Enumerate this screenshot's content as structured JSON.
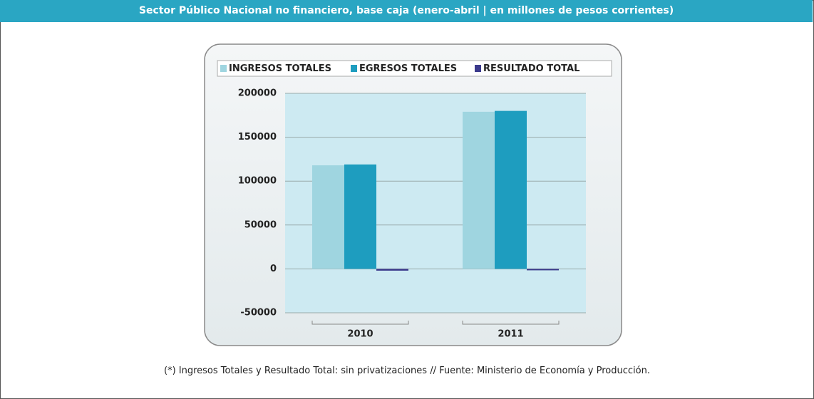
{
  "header": {
    "title": "Sector Público Nacional no financiero, base caja (enero-abril | en millones de pesos corrientes)"
  },
  "chart_data": {
    "type": "bar",
    "categories": [
      "2010",
      "2011"
    ],
    "series": [
      {
        "name": "INGRESOS TOTALES",
        "color": "#9fd5e0",
        "values": [
          118000,
          179000
        ]
      },
      {
        "name": "EGRESOS TOTALES",
        "color": "#1e9dbf",
        "values": [
          119000,
          180000
        ]
      },
      {
        "name": "RESULTADO TOTAL",
        "color": "#3b3a8c",
        "values": [
          -2000,
          -1000
        ]
      }
    ],
    "ylim": [
      -50000,
      200000
    ],
    "yticks": [
      -50000,
      0,
      50000,
      100000,
      150000,
      200000
    ],
    "grid": true,
    "legend": "top"
  },
  "footnote": "(*) Ingresos Totales y Resultado Total: sin privatizaciones // Fuente: Ministerio de Economía y Producción."
}
